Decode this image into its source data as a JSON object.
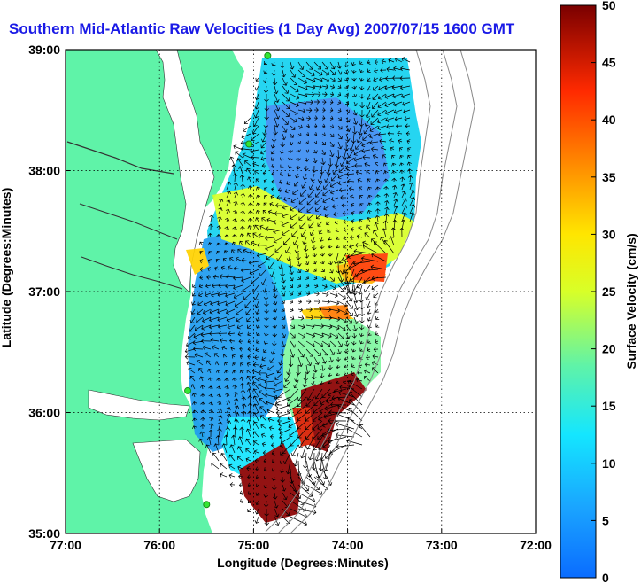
{
  "title": "Southern Mid-Atlantic Raw Velocities (1 Day Avg) 2007/07/15 1600 GMT",
  "axes": {
    "xlabel": "Longitude (Degrees:Minutes)",
    "ylabel": "Latitude (Degrees:Minutes)",
    "xticks": [
      "77:00",
      "76:00",
      "75:00",
      "74:00",
      "73:00",
      "72:00"
    ],
    "yticks": [
      "39:00",
      "38:00",
      "37:00",
      "36:00",
      "35:00"
    ],
    "xlim": [
      -77,
      -72
    ],
    "ylim": [
      35,
      39
    ]
  },
  "colorbar": {
    "label": "Surface Velocity (cm/s)",
    "ticks": [
      "0",
      "5",
      "10",
      "15",
      "20",
      "25",
      "30",
      "35",
      "40",
      "45",
      "50"
    ],
    "range": [
      0,
      50
    ]
  },
  "colors": {
    "land": "#5ff3a8",
    "title": "#1a1ae6",
    "vector": "#000000",
    "station": "#33e633"
  },
  "stations": [
    {
      "lon": -74.85,
      "lat": 38.95
    },
    {
      "lon": -75.05,
      "lat": 38.22
    },
    {
      "lon": -75.7,
      "lat": 36.18
    },
    {
      "lon": -75.5,
      "lat": 35.24
    }
  ]
}
